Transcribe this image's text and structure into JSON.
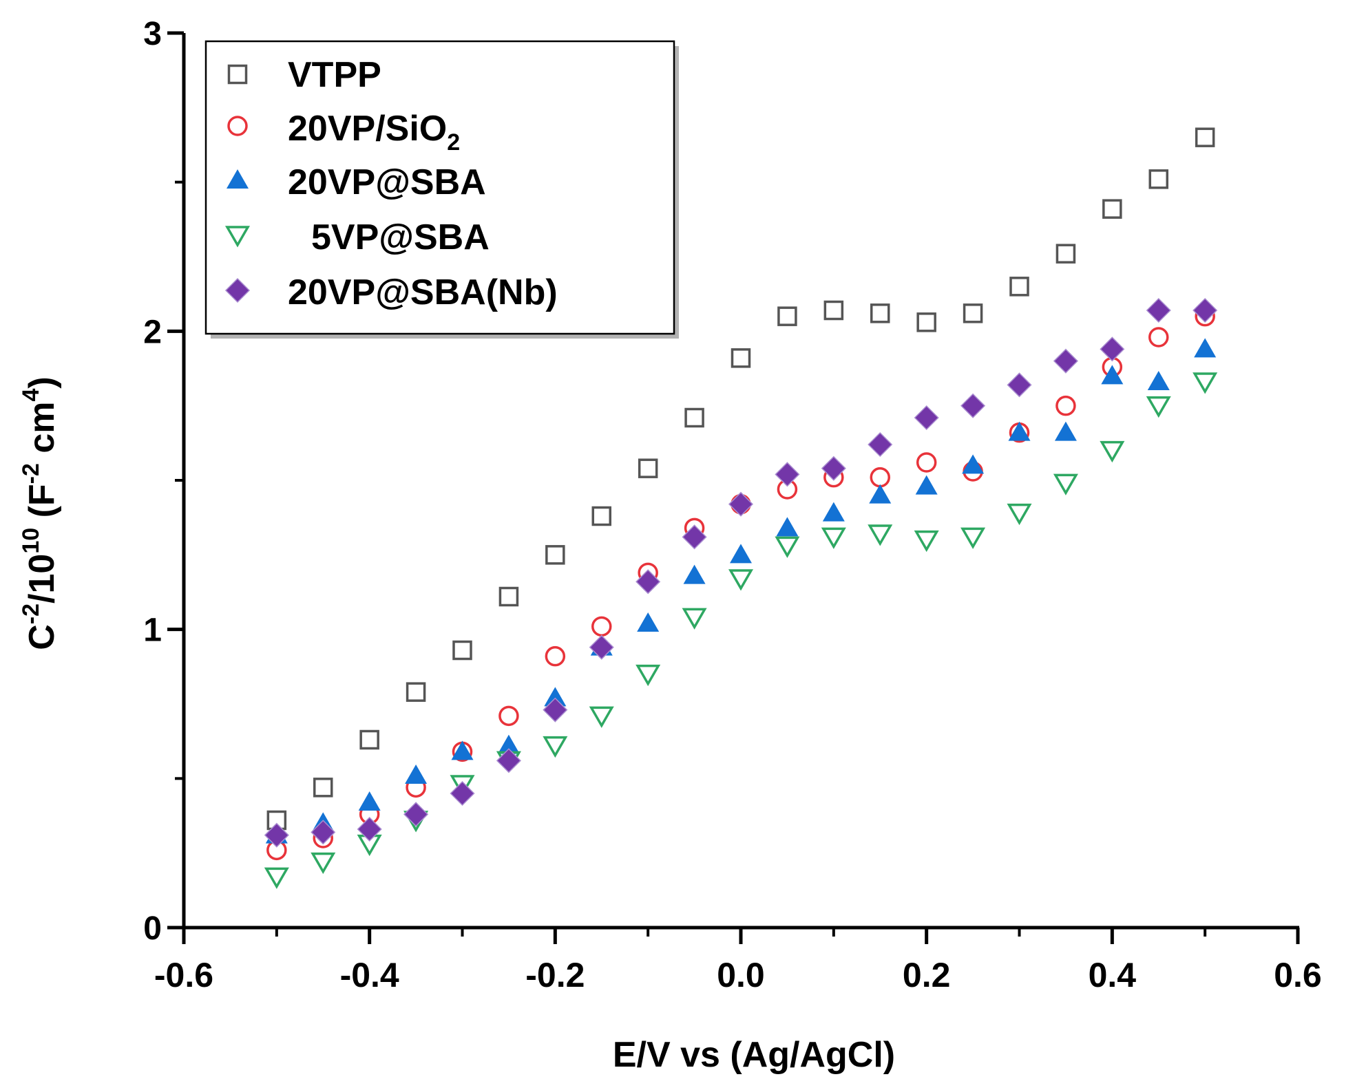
{
  "chart_data": {
    "type": "scatter",
    "title": "",
    "xlabel": "E/V vs (Ag/AgCl)",
    "ylabel_parts": {
      "c": "C",
      "c_sup": "-2",
      "slash_base": "/10",
      "base_sup": "10",
      "open": " (F",
      "f_sup": "-2",
      "cm": " cm",
      "cm_sup": "4",
      "close": ")"
    },
    "xlim": [
      -0.6,
      0.6
    ],
    "ylim": [
      0,
      3
    ],
    "x_ticks": [
      -0.6,
      -0.4,
      -0.2,
      0.0,
      0.2,
      0.4,
      0.6
    ],
    "x_tick_labels": [
      "-0.6",
      "-0.4",
      "-0.2",
      "0.0",
      "0.2",
      "0.4",
      "0.6"
    ],
    "x_minor_ticks": [
      -0.5,
      -0.3,
      -0.1,
      0.1,
      0.3,
      0.5
    ],
    "y_ticks": [
      0,
      1,
      2,
      3
    ],
    "y_tick_labels": [
      "0",
      "1",
      "2",
      "3"
    ],
    "y_minor_ticks": [
      0.5,
      1.5,
      2.5
    ],
    "grid": false,
    "legend_position": "top-left",
    "x": [
      -0.5,
      -0.45,
      -0.4,
      -0.35,
      -0.3,
      -0.25,
      -0.2,
      -0.15,
      -0.1,
      -0.05,
      0.0,
      0.05,
      0.1,
      0.15,
      0.2,
      0.25,
      0.3,
      0.35,
      0.4,
      0.45,
      0.5
    ],
    "series": [
      {
        "name": "VTPP",
        "marker": "open-square",
        "color": "#555555",
        "values": [
          0.36,
          0.47,
          0.63,
          0.79,
          0.93,
          1.11,
          1.25,
          1.38,
          1.54,
          1.71,
          1.91,
          2.05,
          2.07,
          2.06,
          2.03,
          2.06,
          2.15,
          2.26,
          2.41,
          2.51,
          2.65
        ]
      },
      {
        "name_main": "20VP/SiO",
        "name_sub": "2",
        "name": "20VP/SiO2",
        "marker": "open-circle",
        "color": "#e8333a",
        "values": [
          0.26,
          0.3,
          0.38,
          0.47,
          0.59,
          0.71,
          0.91,
          1.01,
          1.19,
          1.34,
          1.42,
          1.47,
          1.51,
          1.51,
          1.56,
          1.53,
          1.66,
          1.75,
          1.88,
          1.98,
          2.05
        ]
      },
      {
        "name": "20VP@SBA",
        "marker": "filled-triangle-up",
        "color": "#1372d4",
        "values": [
          0.31,
          0.35,
          0.42,
          0.51,
          0.59,
          0.61,
          0.77,
          0.94,
          1.02,
          1.18,
          1.25,
          1.34,
          1.39,
          1.45,
          1.48,
          1.55,
          1.66,
          1.66,
          1.85,
          1.83,
          1.94
        ]
      },
      {
        "name": "5VP@SBA",
        "marker": "open-triangle-down",
        "color": "#2ea862",
        "values": [
          0.17,
          0.22,
          0.28,
          0.36,
          0.48,
          0.56,
          0.61,
          0.71,
          0.85,
          1.04,
          1.17,
          1.28,
          1.31,
          1.32,
          1.3,
          1.31,
          1.39,
          1.49,
          1.6,
          1.75,
          1.83
        ]
      },
      {
        "name": "20VP@SBA(Nb)",
        "marker": "filled-diamond",
        "color": "#7336a8",
        "values": [
          0.31,
          0.32,
          0.33,
          0.38,
          0.45,
          0.56,
          0.73,
          0.94,
          1.16,
          1.31,
          1.42,
          1.52,
          1.54,
          1.62,
          1.71,
          1.75,
          1.82,
          1.9,
          1.94,
          2.07,
          2.07
        ]
      }
    ]
  }
}
